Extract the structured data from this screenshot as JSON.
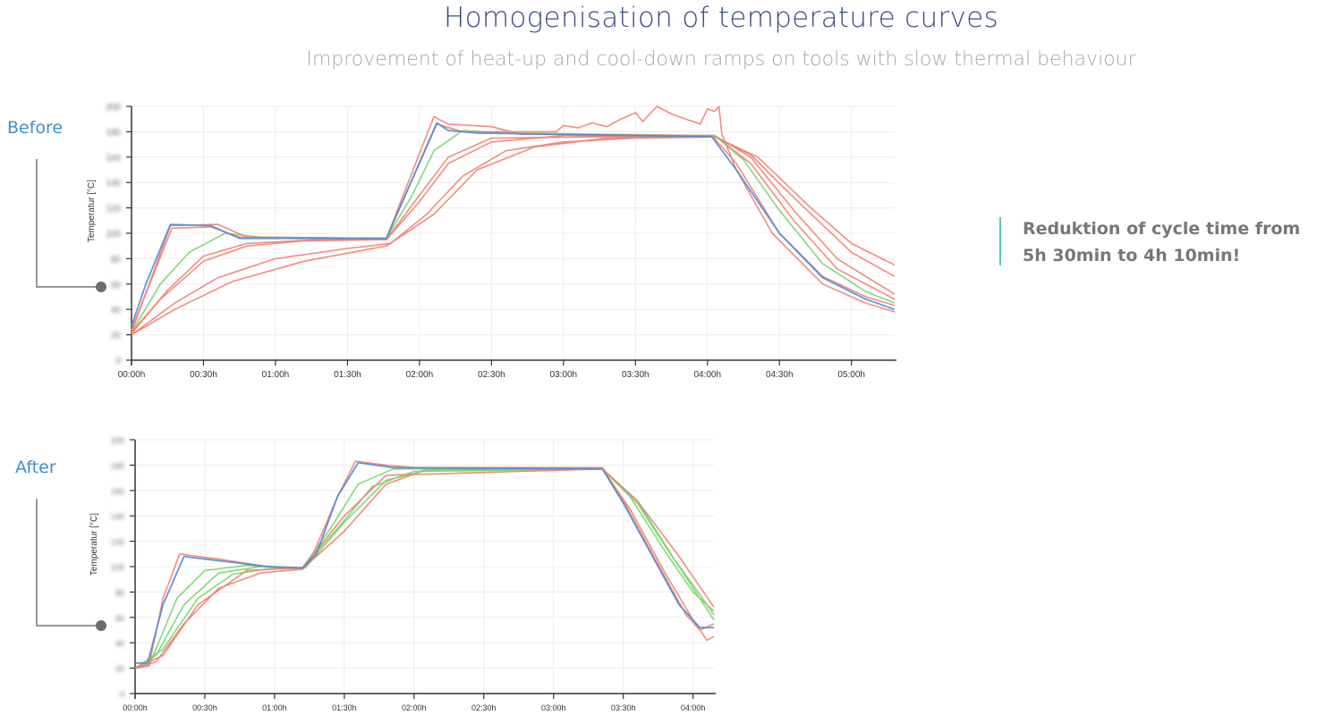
{
  "header": {
    "title": "Homogenisation of temperature curves",
    "subtitle": "Improvement of heat-up and cool-down ramps on tools with slow thermal behaviour"
  },
  "labels": {
    "before": "Before",
    "after": "After"
  },
  "callout": {
    "text": "Reduktion of cycle time from 5h 30min to 4h 10min!"
  },
  "colors": {
    "red": "#ef7f70",
    "green": "#78d36a",
    "blue": "#4f8bd6",
    "title": "#3b4b85",
    "label": "#3d8fd0",
    "callout_bar": "#5fcf9a"
  },
  "chart_data": [
    {
      "type": "line",
      "name_label": "Before",
      "ylabel": "Temperatur [°C]",
      "xlabel": "",
      "xlim": [
        0,
        5.3
      ],
      "ylim": [
        0,
        200
      ],
      "grid": true,
      "x_unit": "hours",
      "xticks": [
        0,
        0.5,
        1,
        1.5,
        2,
        2.5,
        3,
        3.5,
        4,
        4.5,
        5
      ],
      "xtick_labels": [
        "00:00h",
        "00:30h",
        "01:00h",
        "01:30h",
        "02:00h",
        "02:30h",
        "03:00h",
        "03:30h",
        "04:00h",
        "04:30h",
        "05:00h"
      ],
      "yticks": [
        0,
        20,
        40,
        60,
        80,
        100,
        120,
        140,
        160,
        180,
        200
      ],
      "series": [
        {
          "color": "red",
          "points": [
            [
              0,
              20
            ],
            [
              0.3,
              45
            ],
            [
              0.6,
              65
            ],
            [
              1.0,
              80
            ],
            [
              1.5,
              88
            ],
            [
              1.8,
              92
            ],
            [
              2.05,
              115
            ],
            [
              2.3,
              145
            ],
            [
              2.6,
              165
            ],
            [
              3.0,
              172
            ],
            [
              3.5,
              175
            ],
            [
              4.05,
              176
            ],
            [
              4.35,
              160
            ],
            [
              4.7,
              122
            ],
            [
              5.0,
              92
            ],
            [
              5.3,
              75
            ]
          ]
        },
        {
          "color": "red",
          "points": [
            [
              0,
              20
            ],
            [
              0.3,
              40
            ],
            [
              0.7,
              62
            ],
            [
              1.2,
              78
            ],
            [
              1.77,
              90
            ],
            [
              2.1,
              115
            ],
            [
              2.4,
              150
            ],
            [
              2.8,
              168
            ],
            [
              3.3,
              175
            ],
            [
              4.05,
              176
            ],
            [
              4.3,
              162
            ],
            [
              4.6,
              128
            ],
            [
              5.0,
              85
            ],
            [
              5.3,
              66
            ]
          ]
        },
        {
          "color": "red",
          "points": [
            [
              0,
              22
            ],
            [
              0.2,
              48
            ],
            [
              0.5,
              78
            ],
            [
              0.8,
              90
            ],
            [
              1.2,
              94
            ],
            [
              1.77,
              95
            ],
            [
              2.0,
              125
            ],
            [
              2.2,
              155
            ],
            [
              2.5,
              172
            ],
            [
              3.0,
              177
            ],
            [
              4.05,
              177
            ],
            [
              4.3,
              160
            ],
            [
              4.6,
              118
            ],
            [
              4.9,
              80
            ],
            [
              5.3,
              52
            ]
          ]
        },
        {
          "color": "red",
          "points": [
            [
              0,
              21
            ],
            [
              0.25,
              55
            ],
            [
              0.5,
              82
            ],
            [
              0.8,
              92
            ],
            [
              1.3,
              95
            ],
            [
              1.77,
              95
            ],
            [
              2.0,
              130
            ],
            [
              2.2,
              160
            ],
            [
              2.5,
              175
            ],
            [
              4.05,
              177
            ],
            [
              4.3,
              155
            ],
            [
              4.6,
              110
            ],
            [
              4.9,
              72
            ],
            [
              5.3,
              48
            ]
          ]
        },
        {
          "color": "green",
          "points": [
            [
              0,
              22
            ],
            [
              0.2,
              60
            ],
            [
              0.4,
              85
            ],
            [
              0.65,
              100
            ],
            [
              0.9,
              97
            ],
            [
              1.77,
              96
            ],
            [
              1.95,
              130
            ],
            [
              2.1,
              165
            ],
            [
              2.3,
              181
            ],
            [
              2.6,
              179
            ],
            [
              4.05,
              177
            ],
            [
              4.25,
              158
            ],
            [
              4.5,
              118
            ],
            [
              4.8,
              76
            ],
            [
              5.1,
              54
            ],
            [
              5.3,
              45
            ]
          ]
        },
        {
          "color": "red",
          "points": [
            [
              0,
              22
            ],
            [
              0.27,
              106
            ],
            [
              0.6,
              107
            ],
            [
              0.8,
              97
            ],
            [
              1.77,
              96
            ],
            [
              2.1,
              192
            ],
            [
              2.2,
              186
            ],
            [
              2.5,
              184
            ],
            [
              2.7,
              178
            ],
            [
              4.03,
              177
            ],
            [
              4.2,
              155
            ],
            [
              4.5,
              100
            ],
            [
              4.8,
              66
            ],
            [
              5.1,
              50
            ],
            [
              5.3,
              43
            ]
          ]
        },
        {
          "color": "red",
          "points": [
            [
              0,
              24
            ],
            [
              0.28,
              104
            ],
            [
              0.55,
              105
            ],
            [
              0.75,
              97
            ],
            [
              1.77,
              96
            ],
            [
              2.12,
              186
            ],
            [
              2.3,
              180
            ],
            [
              2.95,
              180
            ],
            [
              3.0,
              185
            ],
            [
              3.1,
              183
            ],
            [
              3.2,
              187
            ],
            [
              3.3,
              184
            ],
            [
              3.4,
              190
            ],
            [
              3.5,
              195
            ],
            [
              3.55,
              188
            ],
            [
              3.65,
              200
            ],
            [
              3.75,
              194
            ],
            [
              3.85,
              190
            ],
            [
              3.95,
              186
            ],
            [
              4.0,
              198
            ],
            [
              4.05,
              196
            ],
            [
              4.08,
              200
            ],
            [
              4.1,
              178
            ],
            [
              4.2,
              150
            ],
            [
              4.45,
              100
            ],
            [
              4.8,
              60
            ],
            [
              5.1,
              45
            ],
            [
              5.3,
              38
            ]
          ]
        },
        {
          "color": "blue",
          "points": [
            [
              0,
              27
            ],
            [
              0.1,
              60
            ],
            [
              0.27,
              107
            ],
            [
              0.55,
              106
            ],
            [
              0.75,
              96
            ],
            [
              1.77,
              96
            ],
            [
              2.12,
              187
            ],
            [
              2.2,
              181
            ],
            [
              2.4,
              179
            ],
            [
              4.03,
              176
            ],
            [
              4.2,
              150
            ],
            [
              4.5,
              100
            ],
            [
              4.8,
              65
            ],
            [
              5.1,
              48
            ],
            [
              5.3,
              40
            ]
          ]
        }
      ]
    },
    {
      "type": "line",
      "name_label": "After",
      "ylabel": "Temperatur [°C]",
      "xlabel": "",
      "xlim": [
        0,
        4.15
      ],
      "ylim": [
        0,
        200
      ],
      "grid": true,
      "x_unit": "hours",
      "xticks": [
        0,
        0.5,
        1,
        1.5,
        2,
        2.5,
        3,
        3.5,
        4
      ],
      "xtick_labels": [
        "00:00h",
        "00:30h",
        "01:00h",
        "01:30h",
        "02:00h",
        "02:30h",
        "03:00h",
        "03:30h",
        "04:00h"
      ],
      "yticks": [
        0,
        20,
        40,
        60,
        80,
        100,
        120,
        140,
        160,
        180,
        200
      ],
      "series": [
        {
          "color": "red",
          "points": [
            [
              0,
              20
            ],
            [
              0.15,
              25
            ],
            [
              0.35,
              55
            ],
            [
              0.6,
              83
            ],
            [
              0.9,
              95
            ],
            [
              1.2,
              98
            ],
            [
              1.5,
              128
            ],
            [
              1.8,
              165
            ],
            [
              2.1,
              177
            ],
            [
              3.35,
              177
            ],
            [
              3.55,
              145
            ],
            [
              3.8,
              95
            ],
            [
              4.0,
              58
            ],
            [
              4.1,
              42
            ],
            [
              4.15,
              45
            ]
          ]
        },
        {
          "color": "green",
          "points": [
            [
              0,
              20
            ],
            [
              0.2,
              35
            ],
            [
              0.45,
              75
            ],
            [
              0.7,
              94
            ],
            [
              1.0,
              99
            ],
            [
              1.22,
              99
            ],
            [
              1.5,
              135
            ],
            [
              1.8,
              168
            ],
            [
              2.1,
              176
            ],
            [
              3.35,
              177
            ],
            [
              3.6,
              152
            ],
            [
              3.9,
              100
            ],
            [
              4.15,
              58
            ]
          ]
        },
        {
          "color": "green",
          "points": [
            [
              0,
              20
            ],
            [
              0.15,
              30
            ],
            [
              0.35,
              70
            ],
            [
              0.6,
              95
            ],
            [
              0.9,
              100
            ],
            [
              1.2,
              99
            ],
            [
              1.45,
              130
            ],
            [
              1.7,
              163
            ],
            [
              2.0,
              175
            ],
            [
              3.35,
              177
            ],
            [
              3.6,
              150
            ],
            [
              3.85,
              108
            ],
            [
              4.05,
              78
            ],
            [
              4.15,
              62
            ]
          ]
        },
        {
          "color": "green",
          "points": [
            [
              0,
              20
            ],
            [
              0.1,
              22
            ],
            [
              0.3,
              75
            ],
            [
              0.5,
              97
            ],
            [
              0.8,
              101
            ],
            [
              1.2,
              99
            ],
            [
              1.4,
              130
            ],
            [
              1.6,
              165
            ],
            [
              1.85,
              177
            ],
            [
              2.2,
              177
            ],
            [
              3.35,
              177
            ],
            [
              3.55,
              155
            ],
            [
              3.8,
              112
            ],
            [
              4.0,
              80
            ],
            [
              4.15,
              65
            ]
          ]
        },
        {
          "color": "red",
          "points": [
            [
              0,
              20
            ],
            [
              0.2,
              30
            ],
            [
              0.45,
              70
            ],
            [
              0.8,
              97
            ],
            [
              1.2,
              99
            ],
            [
              1.5,
              140
            ],
            [
              1.8,
              172
            ],
            [
              3.35,
              177
            ],
            [
              3.6,
              152
            ],
            [
              3.9,
              108
            ],
            [
              4.15,
              68
            ]
          ]
        },
        {
          "color": "red",
          "points": [
            [
              0,
              20
            ],
            [
              0.1,
              22
            ],
            [
              0.2,
              75
            ],
            [
              0.32,
              110
            ],
            [
              0.6,
              106
            ],
            [
              0.95,
              100
            ],
            [
              1.2,
              98
            ],
            [
              1.25,
              103
            ],
            [
              1.45,
              155
            ],
            [
              1.58,
              183
            ],
            [
              1.8,
              180
            ],
            [
              2.0,
              178
            ],
            [
              3.35,
              178
            ],
            [
              3.5,
              152
            ],
            [
              3.7,
              112
            ],
            [
              3.95,
              62
            ],
            [
              4.05,
              50
            ],
            [
              4.15,
              55
            ]
          ]
        },
        {
          "color": "blue",
          "points": [
            [
              0,
              24
            ],
            [
              0.09,
              24
            ],
            [
              0.2,
              70
            ],
            [
              0.35,
              108
            ],
            [
              0.65,
              104
            ],
            [
              0.95,
              100
            ],
            [
              1.2,
              99
            ],
            [
              1.3,
              110
            ],
            [
              1.45,
              155
            ],
            [
              1.6,
              182
            ],
            [
              1.85,
              178
            ],
            [
              3.35,
              177
            ],
            [
              3.5,
              150
            ],
            [
              3.7,
              110
            ],
            [
              3.9,
              70
            ],
            [
              4.05,
              52
            ],
            [
              4.15,
              52
            ]
          ]
        }
      ]
    }
  ]
}
